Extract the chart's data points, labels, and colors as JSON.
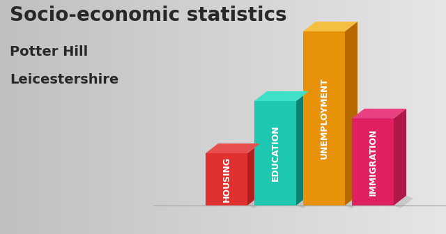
{
  "title": "Socio-economic statistics",
  "subtitle1": "Potter Hill",
  "subtitle2": "Leicestershire",
  "categories": [
    "HOUSING",
    "EDUCATION",
    "UNEMPLOYMENT",
    "IMMIGRATION"
  ],
  "values": [
    0.3,
    0.6,
    1.0,
    0.5
  ],
  "bar_colors_front": [
    "#e03030",
    "#1ec8b0",
    "#e8920a",
    "#e02060"
  ],
  "bar_colors_right": [
    "#b02020",
    "#128070",
    "#b86800",
    "#b01848"
  ],
  "bar_colors_top": [
    "#e85050",
    "#40e0c8",
    "#f5c040",
    "#e84080"
  ],
  "floor_color": "#c0c0c0",
  "shadow_color": "#a8a8a8",
  "text_color": "#282828",
  "title_fontsize": 20,
  "subtitle_fontsize": 14,
  "label_fontsize": 9,
  "bg_color_left": "#c8c8c8",
  "bg_color_right": "#e0e0e0"
}
